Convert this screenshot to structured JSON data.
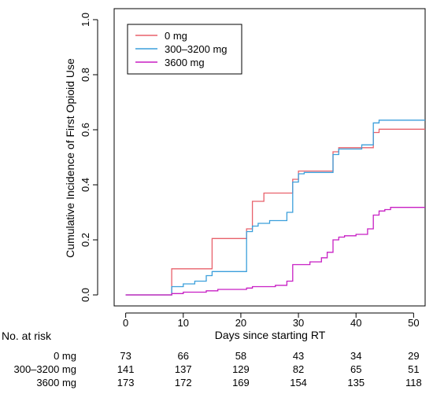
{
  "chart_data": {
    "type": "line",
    "step": true,
    "xlabel": "Days since starting RT",
    "ylabel": "Cumulative Incidence of First Opioid Use",
    "xlim": [
      -2,
      52
    ],
    "ylim": [
      -0.04,
      1.04
    ],
    "xticks": [
      0,
      10,
      20,
      30,
      40,
      50
    ],
    "yticks": [
      0.0,
      0.2,
      0.4,
      0.6,
      0.8,
      1.0
    ],
    "ytick_labels": [
      "0.0",
      "0.2",
      "0.4",
      "0.6",
      "0.8",
      "1.0"
    ],
    "grid": false,
    "legend_position": "top-left",
    "series": [
      {
        "name": "0 mg",
        "color": "#E8616B",
        "points": [
          [
            0,
            0.0
          ],
          [
            8,
            0.0
          ],
          [
            8,
            0.095
          ],
          [
            15,
            0.095
          ],
          [
            15,
            0.205
          ],
          [
            21,
            0.205
          ],
          [
            21,
            0.24
          ],
          [
            22,
            0.24
          ],
          [
            22,
            0.34
          ],
          [
            24,
            0.34
          ],
          [
            24,
            0.37
          ],
          [
            29,
            0.37
          ],
          [
            29,
            0.42
          ],
          [
            30,
            0.42
          ],
          [
            30,
            0.45
          ],
          [
            36,
            0.45
          ],
          [
            36,
            0.52
          ],
          [
            37,
            0.52
          ],
          [
            37,
            0.535
          ],
          [
            43,
            0.535
          ],
          [
            43,
            0.59
          ],
          [
            44,
            0.59
          ],
          [
            44,
            0.602
          ],
          [
            52,
            0.602
          ]
        ]
      },
      {
        "name": "300–3200 mg",
        "color": "#3B9FDB",
        "points": [
          [
            0,
            0.0
          ],
          [
            8,
            0.0
          ],
          [
            8,
            0.03
          ],
          [
            10,
            0.03
          ],
          [
            10,
            0.04
          ],
          [
            12,
            0.04
          ],
          [
            12,
            0.05
          ],
          [
            14,
            0.05
          ],
          [
            14,
            0.07
          ],
          [
            15,
            0.07
          ],
          [
            15,
            0.085
          ],
          [
            21,
            0.085
          ],
          [
            21,
            0.23
          ],
          [
            22,
            0.23
          ],
          [
            22,
            0.25
          ],
          [
            23,
            0.25
          ],
          [
            23,
            0.26
          ],
          [
            25,
            0.26
          ],
          [
            25,
            0.27
          ],
          [
            28,
            0.27
          ],
          [
            28,
            0.3
          ],
          [
            29,
            0.3
          ],
          [
            29,
            0.41
          ],
          [
            30,
            0.41
          ],
          [
            30,
            0.44
          ],
          [
            31,
            0.44
          ],
          [
            31,
            0.445
          ],
          [
            36,
            0.445
          ],
          [
            36,
            0.51
          ],
          [
            37,
            0.51
          ],
          [
            37,
            0.53
          ],
          [
            41,
            0.53
          ],
          [
            41,
            0.545
          ],
          [
            43,
            0.545
          ],
          [
            43,
            0.625
          ],
          [
            44,
            0.625
          ],
          [
            44,
            0.635
          ],
          [
            52,
            0.635
          ]
        ]
      },
      {
        "name": "3600 mg",
        "color": "#C81FC4",
        "points": [
          [
            0,
            0.0
          ],
          [
            8,
            0.0
          ],
          [
            8,
            0.005
          ],
          [
            10,
            0.005
          ],
          [
            10,
            0.01
          ],
          [
            14,
            0.01
          ],
          [
            14,
            0.015
          ],
          [
            16,
            0.015
          ],
          [
            16,
            0.02
          ],
          [
            21,
            0.02
          ],
          [
            21,
            0.025
          ],
          [
            22,
            0.025
          ],
          [
            22,
            0.03
          ],
          [
            26,
            0.03
          ],
          [
            26,
            0.035
          ],
          [
            28,
            0.035
          ],
          [
            28,
            0.05
          ],
          [
            29,
            0.05
          ],
          [
            29,
            0.11
          ],
          [
            32,
            0.11
          ],
          [
            32,
            0.12
          ],
          [
            34,
            0.12
          ],
          [
            34,
            0.135
          ],
          [
            35,
            0.135
          ],
          [
            35,
            0.155
          ],
          [
            36,
            0.155
          ],
          [
            36,
            0.2
          ],
          [
            37,
            0.2
          ],
          [
            37,
            0.21
          ],
          [
            38,
            0.21
          ],
          [
            38,
            0.215
          ],
          [
            40,
            0.215
          ],
          [
            40,
            0.22
          ],
          [
            42,
            0.22
          ],
          [
            42,
            0.24
          ],
          [
            43,
            0.24
          ],
          [
            43,
            0.29
          ],
          [
            44,
            0.29
          ],
          [
            44,
            0.305
          ],
          [
            45,
            0.305
          ],
          [
            45,
            0.31
          ],
          [
            46,
            0.31
          ],
          [
            46,
            0.318
          ],
          [
            52,
            0.318
          ]
        ]
      }
    ],
    "risk_table": {
      "title": "No. at risk",
      "times": [
        0,
        10,
        20,
        30,
        40,
        50
      ],
      "rows": [
        {
          "label": "0 mg",
          "values": [
            "73",
            "66",
            "58",
            "43",
            "34",
            "29"
          ]
        },
        {
          "label": "300–3200 mg",
          "values": [
            "141",
            "137",
            "129",
            "82",
            "65",
            "51"
          ]
        },
        {
          "label": "3600 mg",
          "values": [
            "173",
            "172",
            "169",
            "154",
            "135",
            "118"
          ]
        }
      ]
    }
  }
}
